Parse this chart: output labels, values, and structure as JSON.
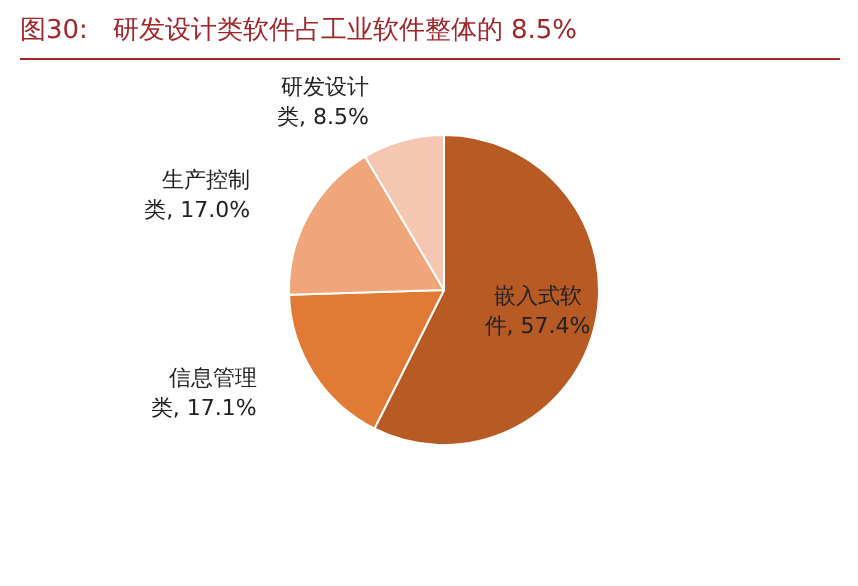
{
  "chart_data": {
    "type": "pie",
    "title": "图30:   研发设计类软件占工业软件整体的 8.5%",
    "categories": [
      "嵌入式软件",
      "信息管理类",
      "生产控制类",
      "研发设计类"
    ],
    "values": [
      57.4,
      17.1,
      17.0,
      8.5
    ],
    "value_labels": [
      "57.4%",
      "17.1%",
      "17.0%",
      "8.5%"
    ],
    "colors": [
      "#b85a24",
      "#e07a35",
      "#f0a57a",
      "#f5c6b0"
    ],
    "legend": false
  }
}
